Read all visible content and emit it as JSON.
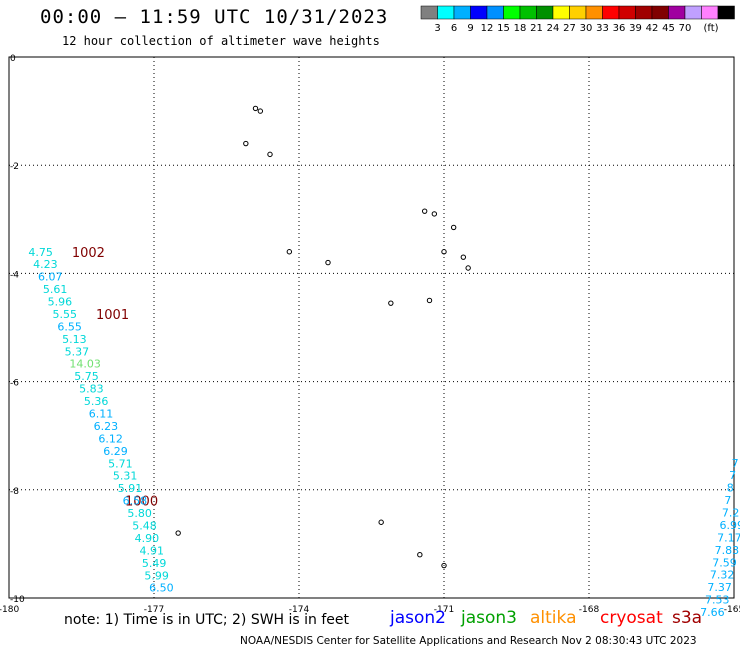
{
  "header": {
    "title": "00:00 – 11:59 UTC 10/31/2023",
    "subtitle": "12 hour collection of altimeter wave heights"
  },
  "colorbar": {
    "colors": [
      "#808080",
      "#00ffff",
      "#00b0ff",
      "#0000ff",
      "#0090ff",
      "#00ff00",
      "#00c000",
      "#009000",
      "#ffff00",
      "#ffd000",
      "#ff9000",
      "#ff0000",
      "#d00000",
      "#a00000",
      "#800000",
      "#a000a0",
      "#c0a0ff",
      "#ff80ff",
      "#000000"
    ],
    "labels": [
      "3",
      "6",
      "9",
      "12",
      "15",
      "18",
      "21",
      "24",
      "27",
      "30",
      "33",
      "36",
      "39",
      "42",
      "45",
      "70"
    ],
    "unit": "(ft)"
  },
  "chart_data": {
    "type": "scatter",
    "xlim": [
      -180,
      -165
    ],
    "ylim": [
      -10,
      0
    ],
    "x_ticks": [
      "-180",
      "-177",
      "-174",
      "-171",
      "-168",
      "-165"
    ],
    "y_ticks": [
      "0",
      "-2",
      "-4",
      "-6",
      "-8",
      "-10"
    ],
    "grid": true,
    "land": [
      {
        "lon": -174.9,
        "lat": -0.95
      },
      {
        "lon": -174.8,
        "lat": -1.0
      },
      {
        "lon": -175.1,
        "lat": -1.6
      },
      {
        "lon": -174.6,
        "lat": -1.8
      },
      {
        "lon": -171.4,
        "lat": -2.85
      },
      {
        "lon": -171.2,
        "lat": -2.9
      },
      {
        "lon": -170.8,
        "lat": -3.15
      },
      {
        "lon": -171.0,
        "lat": -3.6
      },
      {
        "lon": -174.2,
        "lat": -3.6
      },
      {
        "lon": -173.4,
        "lat": -3.8
      },
      {
        "lon": -170.6,
        "lat": -3.7
      },
      {
        "lon": -170.5,
        "lat": -3.9
      },
      {
        "lon": -172.1,
        "lat": -4.55
      },
      {
        "lon": -171.3,
        "lat": -4.5
      },
      {
        "lon": -172.3,
        "lat": -8.6
      },
      {
        "lon": -176.5,
        "lat": -8.8
      },
      {
        "lon": -171.5,
        "lat": -9.2
      },
      {
        "lon": -171.0,
        "lat": -9.4
      }
    ],
    "pressure_labels": [
      {
        "text": "1002",
        "lon": -178.7,
        "lat": -3.6
      },
      {
        "text": "1001",
        "lon": -178.2,
        "lat": -4.75
      },
      {
        "text": "1000",
        "lon": -177.6,
        "lat": -8.2
      }
    ],
    "tracks": [
      {
        "name": "",
        "swh": [
          {
            "text": "4.75",
            "lon": -179.6,
            "lat": -3.6,
            "color": "#00d8d8"
          },
          {
            "text": "4.23",
            "lon": -179.5,
            "lat": -3.83,
            "color": "#00d8d8"
          },
          {
            "text": "6.07",
            "lon": -179.4,
            "lat": -4.06,
            "color": "#00b0ff"
          },
          {
            "text": "5.61",
            "lon": -179.3,
            "lat": -4.29,
            "color": "#00d8d8"
          },
          {
            "text": "5.96",
            "lon": -179.2,
            "lat": -4.52,
            "color": "#00d8d8"
          },
          {
            "text": "5.55",
            "lon": -179.1,
            "lat": -4.75,
            "color": "#00d8d8"
          },
          {
            "text": "6.55",
            "lon": -179.0,
            "lat": -4.98,
            "color": "#00b0ff"
          },
          {
            "text": "5.13",
            "lon": -178.9,
            "lat": -5.21,
            "color": "#00d8d8"
          },
          {
            "text": "5.37",
            "lon": -178.85,
            "lat": -5.44,
            "color": "#00d8d8"
          },
          {
            "text": "14.03",
            "lon": -178.75,
            "lat": -5.67,
            "color": "#70e070"
          },
          {
            "text": "5.75",
            "lon": -178.65,
            "lat": -5.9,
            "color": "#00d8d8"
          },
          {
            "text": "5.83",
            "lon": -178.55,
            "lat": -6.13,
            "color": "#00d8d8"
          },
          {
            "text": "5.36",
            "lon": -178.45,
            "lat": -6.36,
            "color": "#00d8d8"
          },
          {
            "text": "6.11",
            "lon": -178.35,
            "lat": -6.59,
            "color": "#00b0ff"
          },
          {
            "text": "6.23",
            "lon": -178.25,
            "lat": -6.82,
            "color": "#00b0ff"
          },
          {
            "text": "6.12",
            "lon": -178.15,
            "lat": -7.05,
            "color": "#00b0ff"
          },
          {
            "text": "6.29",
            "lon": -178.05,
            "lat": -7.28,
            "color": "#00b0ff"
          },
          {
            "text": "5.71",
            "lon": -177.95,
            "lat": -7.51,
            "color": "#00d8d8"
          },
          {
            "text": "5.31",
            "lon": -177.85,
            "lat": -7.74,
            "color": "#00d8d8"
          },
          {
            "text": "5.91",
            "lon": -177.75,
            "lat": -7.97,
            "color": "#00d8d8"
          },
          {
            "text": "6.58",
            "lon": -177.65,
            "lat": -8.2,
            "color": "#00b0ff"
          },
          {
            "text": "5.80",
            "lon": -177.55,
            "lat": -8.43,
            "color": "#00d8d8"
          },
          {
            "text": "5.48",
            "lon": -177.45,
            "lat": -8.66,
            "color": "#00d8d8"
          },
          {
            "text": "4.90",
            "lon": -177.4,
            "lat": -8.89,
            "color": "#00d8d8"
          },
          {
            "text": "4.91",
            "lon": -177.3,
            "lat": -9.12,
            "color": "#00d8d8"
          },
          {
            "text": "5.49",
            "lon": -177.25,
            "lat": -9.35,
            "color": "#00d8d8"
          },
          {
            "text": "5.99",
            "lon": -177.2,
            "lat": -9.58,
            "color": "#00d8d8"
          },
          {
            "text": "6.50",
            "lon": -177.1,
            "lat": -9.81,
            "color": "#00b0ff"
          }
        ]
      },
      {
        "name": "",
        "swh": [
          {
            "text": "7",
            "lon": -165.05,
            "lat": -7.5,
            "color": "#00b0ff"
          },
          {
            "text": "7",
            "lon": -165.1,
            "lat": -7.73,
            "color": "#00b0ff"
          },
          {
            "text": "8",
            "lon": -165.15,
            "lat": -7.96,
            "color": "#00b0ff"
          },
          {
            "text": "7",
            "lon": -165.2,
            "lat": -8.19,
            "color": "#00b0ff"
          },
          {
            "text": "7.2",
            "lon": -165.25,
            "lat": -8.42,
            "color": "#00b0ff"
          },
          {
            "text": "6.99",
            "lon": -165.3,
            "lat": -8.65,
            "color": "#00b0ff"
          },
          {
            "text": "7.17",
            "lon": -165.35,
            "lat": -8.88,
            "color": "#00b0ff"
          },
          {
            "text": "7.83",
            "lon": -165.4,
            "lat": -9.11,
            "color": "#00b0ff"
          },
          {
            "text": "7.59",
            "lon": -165.45,
            "lat": -9.34,
            "color": "#00b0ff"
          },
          {
            "text": "7.32",
            "lon": -165.5,
            "lat": -9.57,
            "color": "#00b0ff"
          },
          {
            "text": "7.37",
            "lon": -165.55,
            "lat": -9.8,
            "color": "#00b0ff"
          },
          {
            "text": "7.53",
            "lon": -165.6,
            "lat": -10.03,
            "color": "#00b0ff"
          },
          {
            "text": "7.66",
            "lon": -165.7,
            "lat": -10.26,
            "color": "#00b0ff"
          }
        ]
      }
    ]
  },
  "note": "note:  1) Time is in UTC; 2) SWH is in feet",
  "missions": [
    {
      "label": "jason2",
      "color": "#0000ff"
    },
    {
      "label": "jason3",
      "color": "#00a000"
    },
    {
      "label": "altika",
      "color": "#ff9000"
    },
    {
      "label": "cryosat",
      "color": "#ff0000"
    },
    {
      "label": "s3a",
      "color": "#a00000"
    }
  ],
  "footer": "NOAA/NESDIS Center for Satellite Applications and Research    Nov  2 08:30:43 UTC 2023"
}
